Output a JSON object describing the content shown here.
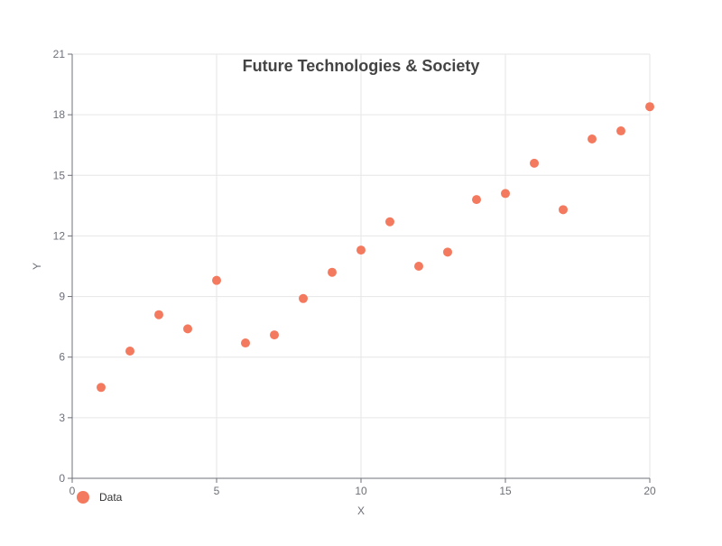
{
  "chart_data": {
    "type": "scatter",
    "title": "Future Technologies & Society",
    "xlabel": "X",
    "ylabel": "Y",
    "xlim": [
      0,
      20
    ],
    "ylim": [
      0,
      21
    ],
    "x_ticks": [
      0,
      5,
      10,
      15,
      20
    ],
    "y_ticks": [
      0,
      3,
      6,
      9,
      12,
      15,
      18,
      21
    ],
    "grid": true,
    "legend_position": "bottom-left",
    "series": [
      {
        "name": "Data",
        "color": "#f47a5f",
        "points": [
          {
            "x": 1,
            "y": 4.5
          },
          {
            "x": 2,
            "y": 6.3
          },
          {
            "x": 3,
            "y": 8.1
          },
          {
            "x": 4,
            "y": 7.4
          },
          {
            "x": 5,
            "y": 9.8
          },
          {
            "x": 6,
            "y": 6.7
          },
          {
            "x": 7,
            "y": 7.1
          },
          {
            "x": 8,
            "y": 8.9
          },
          {
            "x": 9,
            "y": 10.2
          },
          {
            "x": 10,
            "y": 11.3
          },
          {
            "x": 11,
            "y": 12.7
          },
          {
            "x": 12,
            "y": 10.5
          },
          {
            "x": 13,
            "y": 11.2
          },
          {
            "x": 14,
            "y": 13.8
          },
          {
            "x": 15,
            "y": 14.1
          },
          {
            "x": 16,
            "y": 15.6
          },
          {
            "x": 17,
            "y": 13.3
          },
          {
            "x": 18,
            "y": 16.8
          },
          {
            "x": 19,
            "y": 17.2
          },
          {
            "x": 20,
            "y": 18.4
          }
        ]
      }
    ]
  }
}
